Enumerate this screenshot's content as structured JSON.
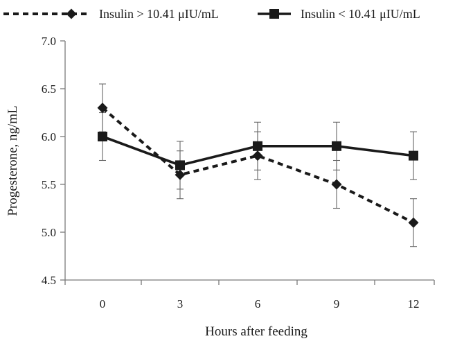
{
  "chart_data": {
    "type": "line",
    "title": "",
    "xlabel": "Hours after feeding",
    "ylabel": "Progesterone, ng/mL",
    "categories": [
      "0",
      "3",
      "6",
      "9",
      "12"
    ],
    "ylim": [
      4.5,
      7.0
    ],
    "yticks": [
      "4.5",
      "5.0",
      "5.5",
      "6.0",
      "6.5",
      "7.0"
    ],
    "grid": false,
    "legend_position": "top",
    "series": [
      {
        "name": "Insulin > 10.41 μIU/mL",
        "values": [
          6.3,
          5.6,
          5.8,
          5.5,
          5.1
        ],
        "error": [
          0.25,
          0.25,
          0.25,
          0.25,
          0.25
        ],
        "marker": "diamond",
        "line_style": "dashed",
        "color": "#1a1a1a"
      },
      {
        "name": "Insulin < 10.41 μIU/mL",
        "values": [
          6.0,
          5.7,
          5.9,
          5.9,
          5.8
        ],
        "error": [
          0.25,
          0.25,
          0.25,
          0.25,
          0.25
        ],
        "marker": "square",
        "line_style": "solid",
        "color": "#1a1a1a"
      }
    ]
  }
}
